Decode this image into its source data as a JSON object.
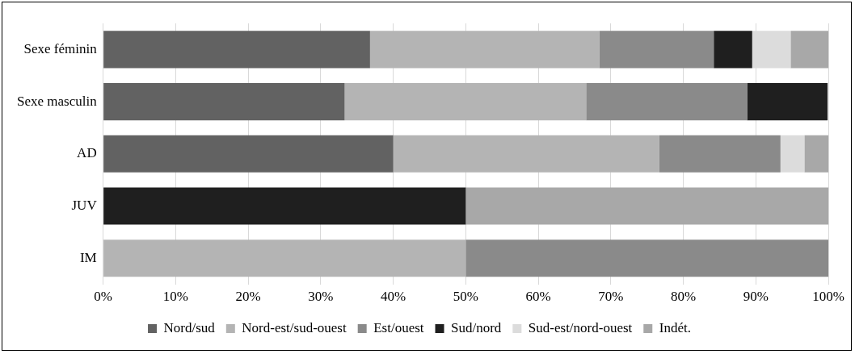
{
  "chart_data": {
    "type": "bar",
    "orientation": "horizontal",
    "stacked": true,
    "categories": [
      "Sexe féminin",
      "Sexe masculin",
      "AD",
      "JUV",
      "IM"
    ],
    "series": [
      {
        "name": "Nord/sud",
        "color": "#626262",
        "values": [
          36.8,
          33.3,
          40,
          0,
          0
        ]
      },
      {
        "name": "Nord-est/sud-ouest",
        "color": "#b4b4b4",
        "values": [
          31.6,
          33.3,
          36.7,
          0,
          50
        ]
      },
      {
        "name": "Est/ouest",
        "color": "#8a8a8a",
        "values": [
          15.8,
          22.2,
          16.7,
          0,
          50
        ]
      },
      {
        "name": "Sud/nord",
        "color": "#1f1f1f",
        "values": [
          5.3,
          11.1,
          0,
          50,
          0
        ]
      },
      {
        "name": "Sud-est/nord-ouest",
        "color": "#dcdcdc",
        "values": [
          5.3,
          0,
          3.3,
          0,
          0
        ]
      },
      {
        "name": "Indét.",
        "color": "#a8a8a8",
        "values": [
          5.3,
          0,
          3.3,
          50,
          0
        ]
      }
    ],
    "xlim": [
      0,
      100
    ],
    "xticks": [
      {
        "value": 0,
        "label": "0%"
      },
      {
        "value": 10,
        "label": "10%"
      },
      {
        "value": 20,
        "label": "20%"
      },
      {
        "value": 30,
        "label": "30%"
      },
      {
        "value": 40,
        "label": "40%"
      },
      {
        "value": 50,
        "label": "50%"
      },
      {
        "value": 60,
        "label": "60%"
      },
      {
        "value": 70,
        "label": "70%"
      },
      {
        "value": 80,
        "label": "80%"
      },
      {
        "value": 90,
        "label": "90%"
      },
      {
        "value": 100,
        "label": "100%"
      }
    ],
    "grid": "x",
    "legend": "bottom"
  }
}
